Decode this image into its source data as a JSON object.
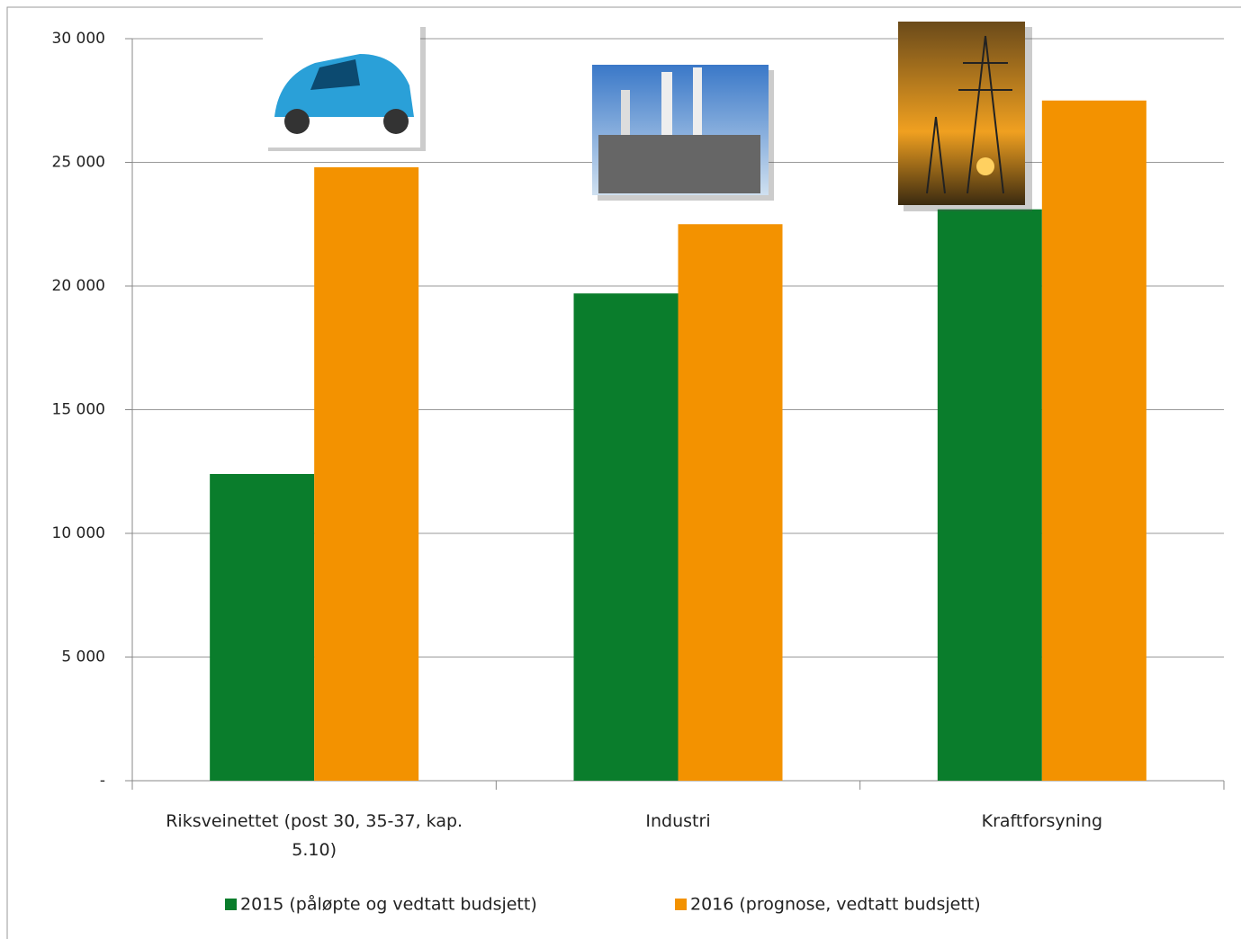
{
  "chart_data": {
    "type": "bar",
    "categories": [
      "Riksveinettet (post 30, 35-37, kap. 5.10)",
      "Industri",
      "Kraftforsyning"
    ],
    "series": [
      {
        "name": "2015 (påløpte og vedtatt budsjett)",
        "color": "#0a7d2c",
        "values": [
          12400,
          19700,
          23100
        ]
      },
      {
        "name": "2016 (prognose, vedtatt budsjett)",
        "color": "#f39200",
        "values": [
          24800,
          22500,
          27500
        ]
      }
    ],
    "ylim": [
      0,
      30000
    ],
    "yticks": [
      {
        "value": 0,
        "label": "-"
      },
      {
        "value": 5000,
        "label": "5 000"
      },
      {
        "value": 10000,
        "label": "10 000"
      },
      {
        "value": 15000,
        "label": "15 000"
      },
      {
        "value": 20000,
        "label": "20 000"
      },
      {
        "value": 25000,
        "label": "25 000"
      },
      {
        "value": 30000,
        "label": "30 000"
      }
    ],
    "grid": true,
    "legend": "bottom"
  }
}
